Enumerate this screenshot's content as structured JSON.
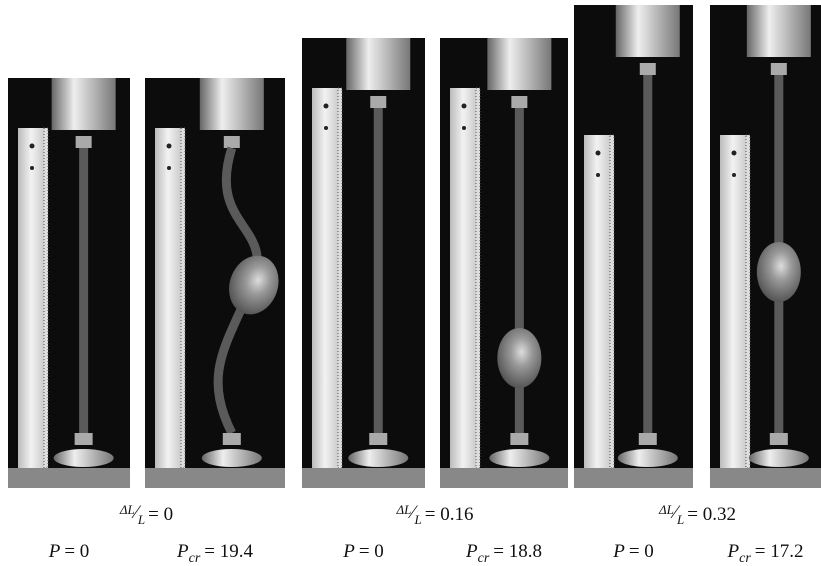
{
  "groups": [
    {
      "strain": {
        "numerator": "ΔL",
        "denominator": "L",
        "equals": "= 0"
      },
      "panels": [
        {
          "symbol": "P",
          "subscript": null,
          "equals": "= 0"
        },
        {
          "symbol": "P",
          "subscript": "cr",
          "equals": "= 19.4"
        }
      ]
    },
    {
      "strain": {
        "numerator": "ΔL",
        "denominator": "L",
        "equals": "= 0.16"
      },
      "panels": [
        {
          "symbol": "P",
          "subscript": null,
          "equals": "= 0"
        },
        {
          "symbol": "P",
          "subscript": "cr",
          "equals": "= 18.8"
        }
      ]
    },
    {
      "strain": {
        "numerator": "ΔL",
        "denominator": "L",
        "equals": "= 0.32"
      },
      "panels": [
        {
          "symbol": "P",
          "subscript": null,
          "equals": "= 0"
        },
        {
          "symbol": "P",
          "subscript": "cr",
          "equals": "= 17.2"
        }
      ]
    }
  ]
}
